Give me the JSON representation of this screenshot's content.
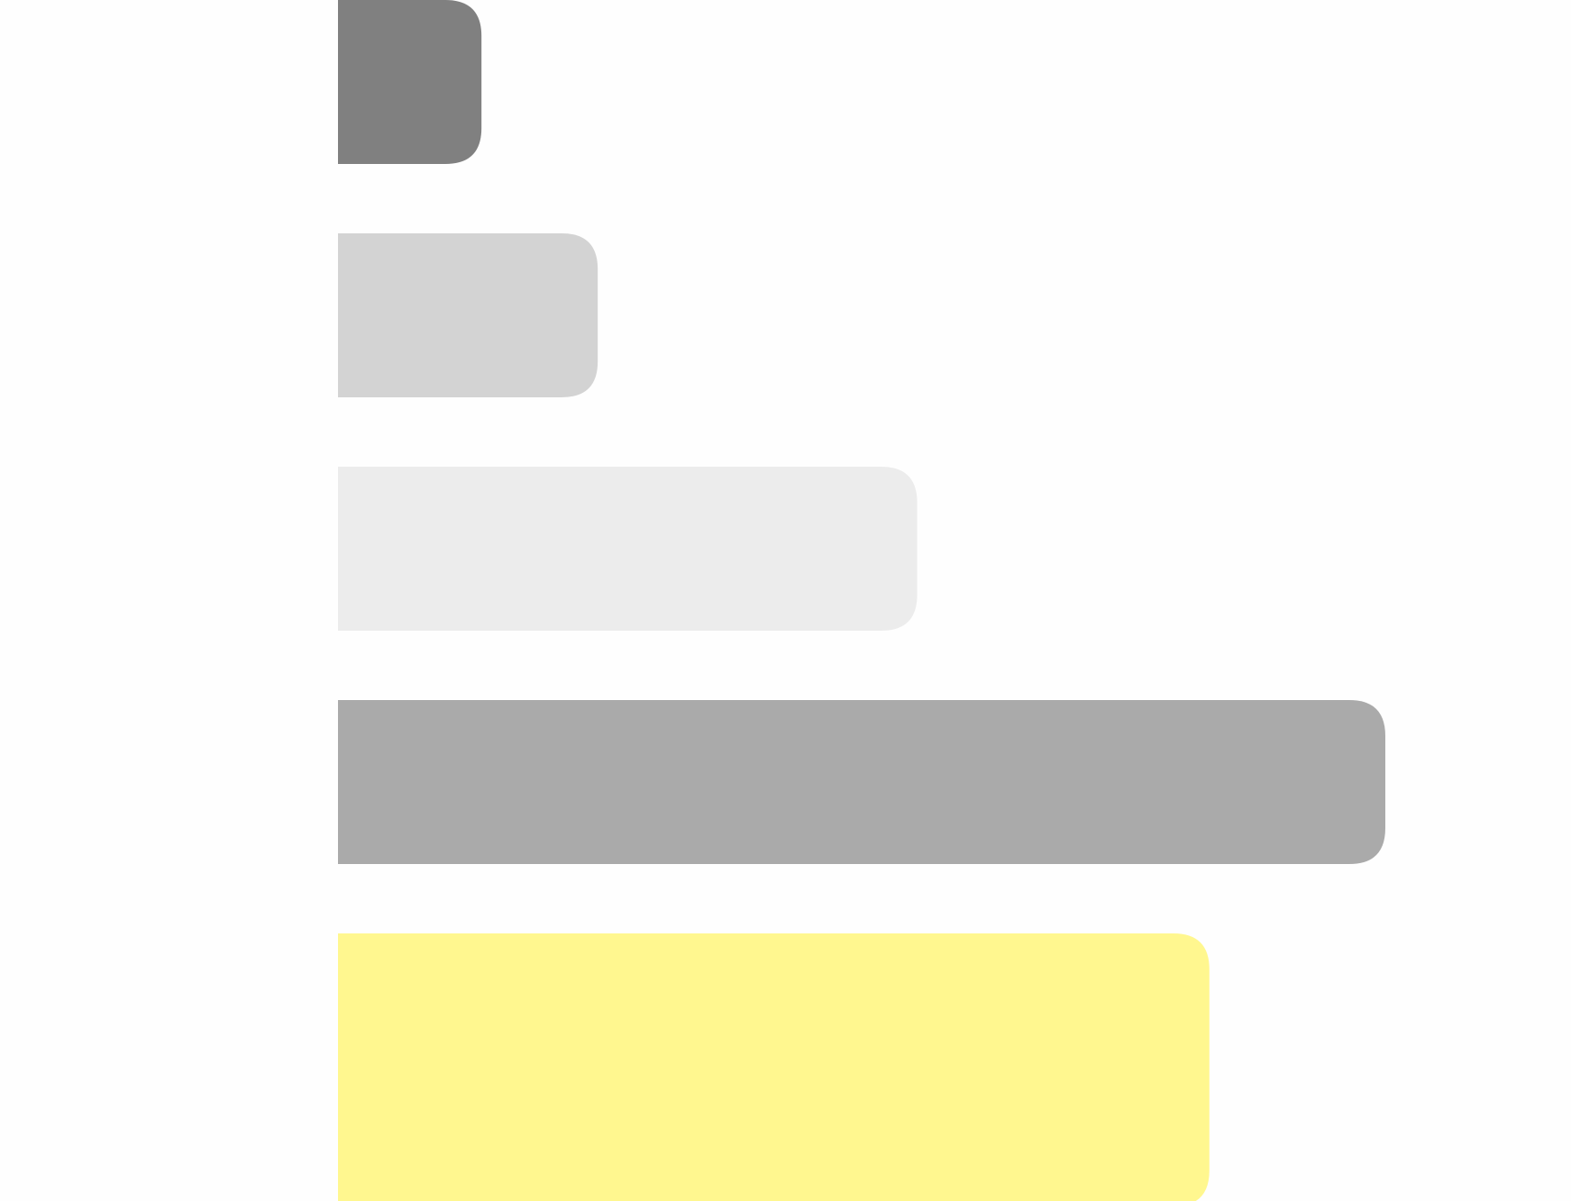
{
  "chart_data": {
    "type": "bar",
    "orientation": "horizontal",
    "title": "",
    "xlabel": "",
    "ylabel": "",
    "grid": false,
    "legend": "none",
    "xlim": [
      0,
      100
    ],
    "values": [
      13.7,
      24.8,
      55.3,
      100,
      83.2
    ],
    "colors": [
      "#808080",
      "#d3d3d3",
      "#ececec",
      "#aaaaaa",
      "#fff78f"
    ]
  }
}
